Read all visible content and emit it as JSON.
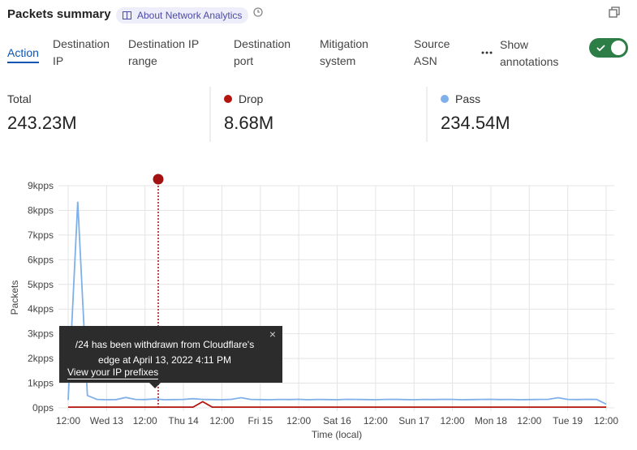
{
  "header": {
    "title": "Packets summary",
    "badge": "About Network Analytics"
  },
  "tabs": [
    "Action",
    "Destination IP",
    "Destination IP range",
    "Destination port",
    "Mitigation system",
    "Source ASN"
  ],
  "active_tab": 0,
  "annotations_toggle": {
    "label": "Show annotations",
    "on": true
  },
  "summary": {
    "total_label": "Total",
    "values": [
      "243.23M",
      "8.68M",
      "234.54M"
    ]
  },
  "annotation": {
    "text": "/24 has been withdrawn from Cloudflare's edge at April 13, 2022 4:11 PM",
    "link": "View your IP prefixes"
  },
  "chart_data": {
    "type": "line",
    "y_label": "Packets",
    "x_label": "Time (local)",
    "categories": [
      "12:00",
      null,
      null,
      null,
      "Wed 13",
      null,
      null,
      null,
      "12:00",
      null,
      null,
      null,
      "Thu 14",
      null,
      null,
      null,
      "12:00",
      null,
      null,
      null,
      "Fri 15",
      null,
      null,
      null,
      "12:00",
      null,
      null,
      null,
      "Sat 16",
      null,
      null,
      null,
      "12:00",
      null,
      null,
      null,
      "Sun 17",
      null,
      null,
      null,
      "12:00",
      null,
      null,
      null,
      "Mon 18",
      null,
      null,
      null,
      "12:00",
      null,
      null,
      null,
      "Tue 19",
      null,
      null,
      null,
      "12:00"
    ],
    "series": [
      {
        "name": "Drop",
        "color": "#b3140c",
        "values": [
          30,
          30,
          30,
          30,
          30,
          30,
          30,
          30,
          30,
          30,
          30,
          30,
          30,
          30,
          250,
          30,
          30,
          30,
          30,
          30,
          30,
          30,
          30,
          30,
          30,
          30,
          30,
          30,
          30,
          30,
          30,
          30,
          30,
          30,
          30,
          30,
          30,
          30,
          30,
          30,
          30,
          30,
          30,
          30,
          30,
          30,
          30,
          30,
          30,
          30,
          30,
          30,
          30,
          30,
          30,
          30,
          30
        ]
      },
      {
        "name": "Pass",
        "color": "#7fb0ea",
        "values": [
          320,
          8350,
          500,
          340,
          330,
          335,
          420,
          340,
          335,
          360,
          330,
          335,
          340,
          370,
          340,
          335,
          330,
          345,
          410,
          340,
          335,
          330,
          340,
          335,
          345,
          330,
          340,
          335,
          330,
          345,
          340,
          335,
          330,
          340,
          345,
          335,
          330,
          340,
          335,
          345,
          340,
          330,
          335,
          340,
          345,
          335,
          340,
          330,
          335,
          340,
          345,
          410,
          340,
          335,
          345,
          340,
          150
        ]
      }
    ],
    "ylim": [
      0,
      9000
    ],
    "yticks": [
      {
        "value": 0,
        "label": "0pps"
      },
      {
        "value": 1000,
        "label": "1kpps"
      },
      {
        "value": 2000,
        "label": "2kpps"
      },
      {
        "value": 3000,
        "label": "3kpps"
      },
      {
        "value": 4000,
        "label": "4kpps"
      },
      {
        "value": 5000,
        "label": "5kpps"
      },
      {
        "value": 6000,
        "label": "6kpps"
      },
      {
        "value": 7000,
        "label": "7kpps"
      },
      {
        "value": 8000,
        "label": "8kpps"
      },
      {
        "value": 9000,
        "label": "9kpps"
      }
    ],
    "grid": true
  }
}
